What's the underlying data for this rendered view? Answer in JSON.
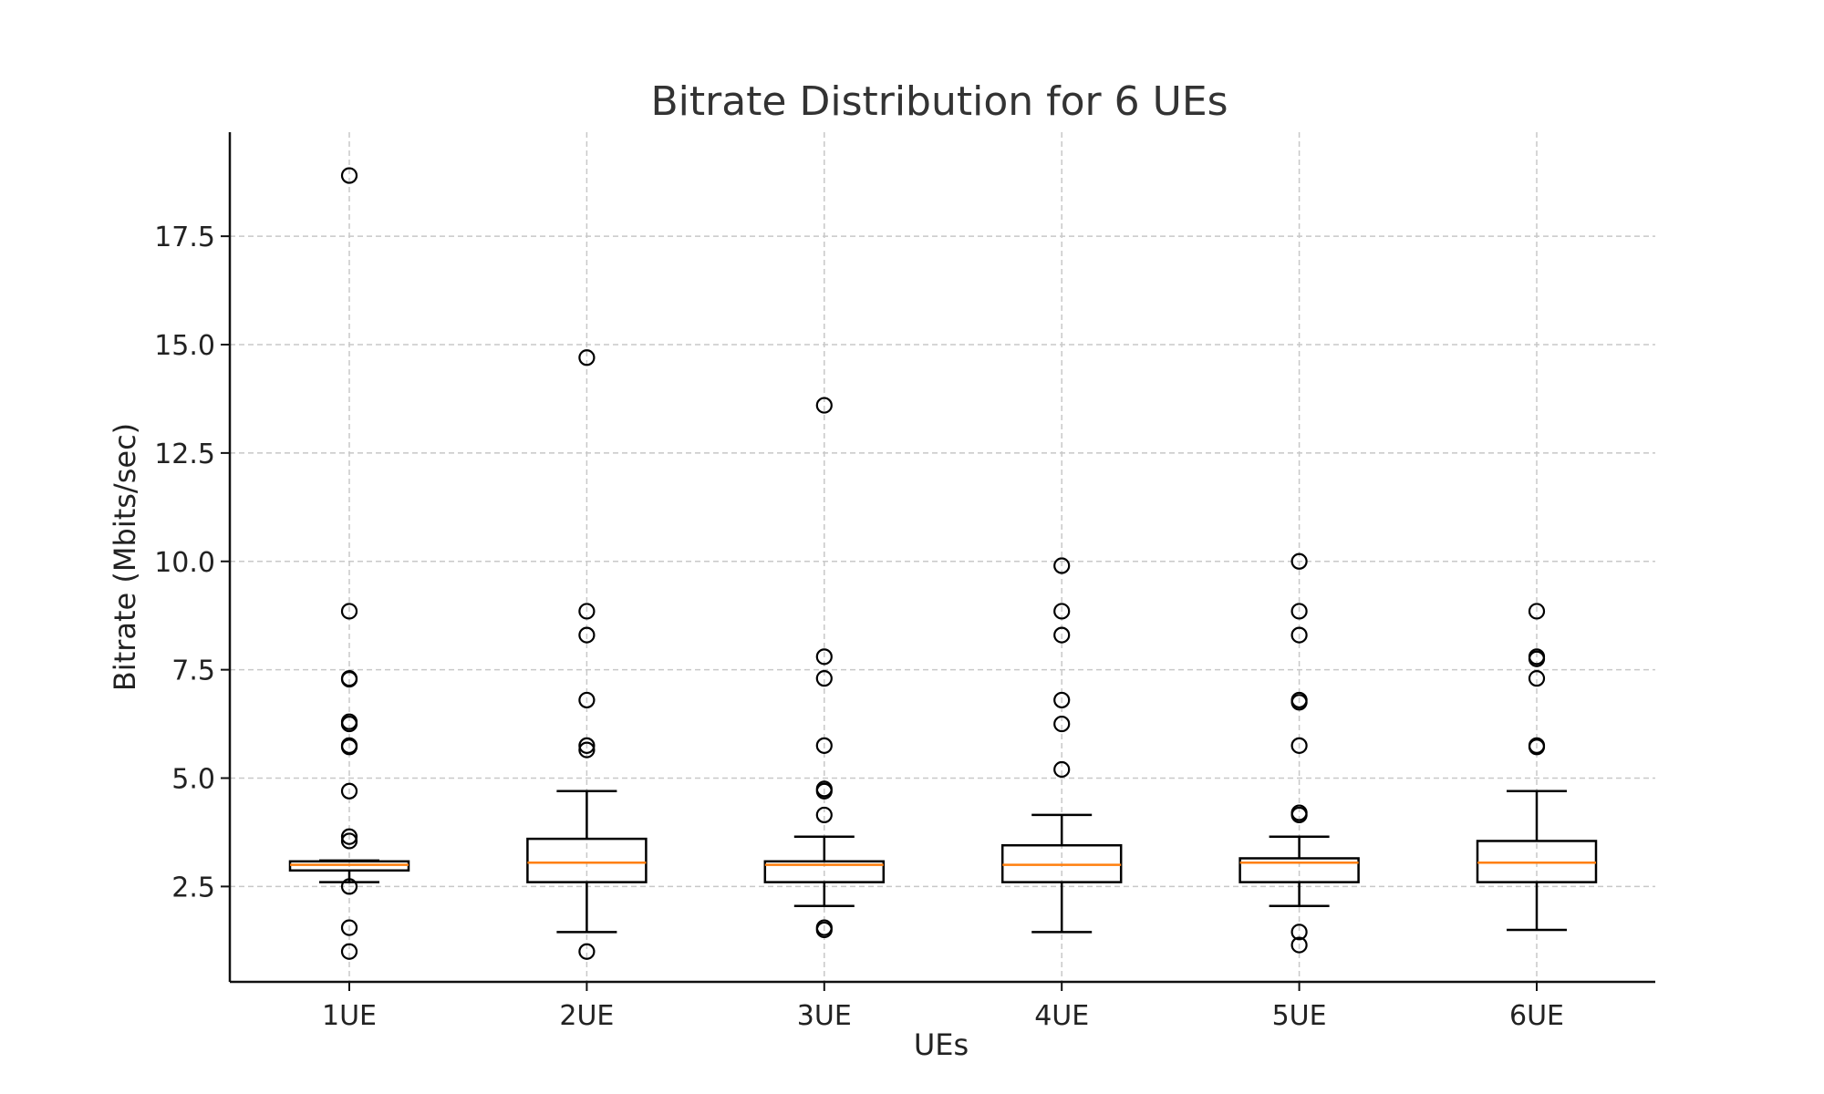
{
  "chart_data": {
    "type": "box",
    "title": "Bitrate Distribution for 6 UEs",
    "xlabel": "UEs",
    "ylabel": "Bitrate (Mbits/sec)",
    "ylim": [
      0.3,
      19.9
    ],
    "yticks": [
      2.5,
      5.0,
      7.5,
      10.0,
      12.5,
      15.0,
      17.5
    ],
    "ytick_labels": [
      "2.5",
      "5.0",
      "7.5",
      "10.0",
      "12.5",
      "15.0",
      "17.5"
    ],
    "grid": true,
    "colors": {
      "box": "#000000",
      "median": "#ff7f0e",
      "grid": "#c8c8c8"
    },
    "categories": [
      "1UE",
      "2UE",
      "3UE",
      "4UE",
      "5UE",
      "6UE"
    ],
    "boxes": [
      {
        "whisker_low": 2.6,
        "q1": 2.87,
        "median": 3.0,
        "q3": 3.08,
        "whisker_high": 3.1,
        "fliers": [
          18.9,
          8.85,
          7.3,
          7.28,
          6.3,
          6.25,
          5.75,
          5.72,
          4.7,
          3.65,
          3.55,
          2.5,
          1.55,
          1.0
        ]
      },
      {
        "whisker_low": 1.45,
        "q1": 2.6,
        "median": 3.05,
        "q3": 3.6,
        "whisker_high": 4.7,
        "fliers": [
          14.7,
          8.85,
          8.3,
          6.8,
          5.75,
          5.65,
          1.0
        ]
      },
      {
        "whisker_low": 2.05,
        "q1": 2.6,
        "median": 3.0,
        "q3": 3.08,
        "whisker_high": 3.65,
        "fliers": [
          13.6,
          7.8,
          7.3,
          5.75,
          4.75,
          4.7,
          4.15,
          1.55,
          1.5
        ]
      },
      {
        "whisker_low": 1.45,
        "q1": 2.6,
        "median": 3.0,
        "q3": 3.45,
        "whisker_high": 4.15,
        "fliers": [
          9.9,
          8.85,
          8.3,
          6.8,
          6.25,
          5.2
        ]
      },
      {
        "whisker_low": 2.05,
        "q1": 2.6,
        "median": 3.05,
        "q3": 3.15,
        "whisker_high": 3.65,
        "fliers": [
          10.0,
          8.85,
          8.3,
          6.8,
          6.75,
          5.75,
          4.2,
          4.15,
          1.45,
          1.15
        ]
      },
      {
        "whisker_low": 1.5,
        "q1": 2.6,
        "median": 3.05,
        "q3": 3.55,
        "whisker_high": 4.7,
        "fliers": [
          8.85,
          7.8,
          7.75,
          7.3,
          5.75,
          5.72
        ]
      }
    ]
  }
}
